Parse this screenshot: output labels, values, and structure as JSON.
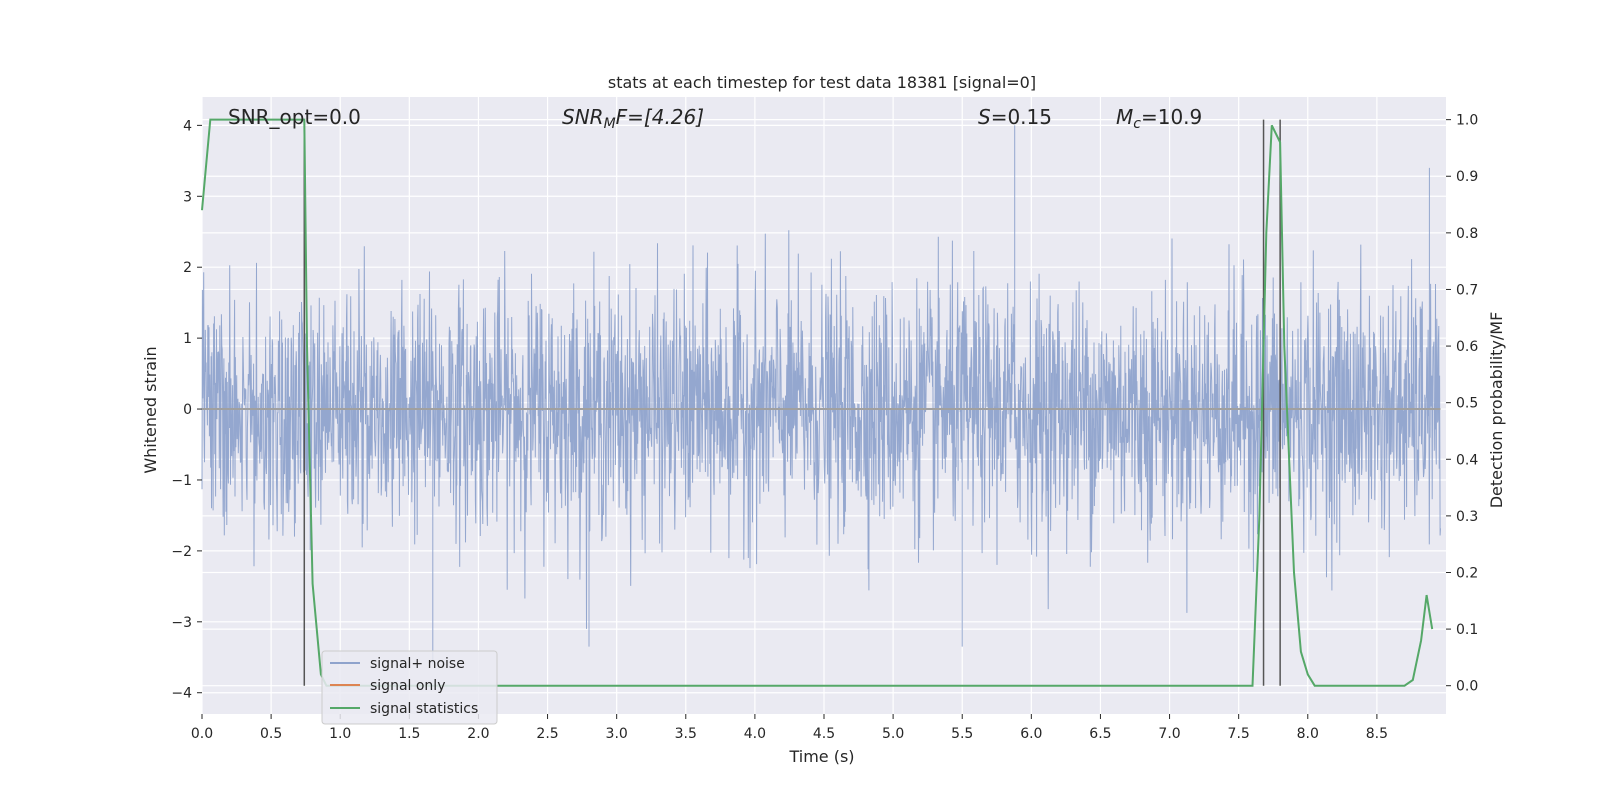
{
  "chart_data": {
    "type": "line",
    "title": "stats at each timestep for test data 18381 [signal=0]",
    "xlabel": "Time (s)",
    "ylabel": "Whitened strain",
    "y2label": "Detection probability/MF",
    "xlim": [
      0,
      9.0
    ],
    "ylim": [
      -4.3,
      4.4
    ],
    "y2lim": [
      -0.05,
      1.04
    ],
    "xticks": [
      "0.0",
      "0.5",
      "1.0",
      "1.5",
      "2.0",
      "2.5",
      "3.0",
      "3.5",
      "4.0",
      "4.5",
      "5.0",
      "5.5",
      "6.0",
      "6.5",
      "7.0",
      "7.5",
      "8.0",
      "8.5"
    ],
    "xtick_values": [
      0,
      0.5,
      1.0,
      1.5,
      2.0,
      2.5,
      3.0,
      3.5,
      4.0,
      4.5,
      5.0,
      5.5,
      6.0,
      6.5,
      7.0,
      7.5,
      8.0,
      8.5
    ],
    "yticks": [
      "4",
      "3",
      "2",
      "1",
      "0",
      "−1",
      "−2",
      "−3",
      "−4"
    ],
    "ytick_values": [
      4,
      3,
      2,
      1,
      0,
      -1,
      -2,
      -3,
      -4
    ],
    "y2ticks": [
      "1.0",
      "0.9",
      "0.8",
      "0.7",
      "0.6",
      "0.5",
      "0.4",
      "0.3",
      "0.2",
      "0.1",
      "0.0"
    ],
    "y2tick_values": [
      1.0,
      0.9,
      0.8,
      0.7,
      0.6,
      0.5,
      0.4,
      0.3,
      0.2,
      0.1,
      0.0
    ],
    "grid": true,
    "legend_position": "bottom-left",
    "annotations": {
      "snr_opt": "SNR_opt=0.0",
      "snr_mf_main": "SNR",
      "snr_mf_sub": "M",
      "snr_mf_rest": "F=[4.26]",
      "s_main": "S",
      "s_rest": "=0.15",
      "mc_main": "M",
      "mc_sub": "c",
      "mc_rest": "=10.9"
    },
    "vertical_lines_x": [
      0.74,
      7.68,
      7.8
    ],
    "series": [
      {
        "name": "signal+ noise",
        "color": "#8fa3cc",
        "noise_amplitude_sigma": 0.85,
        "peaks": [
          [
            5.88,
            4.0
          ],
          [
            8.88,
            3.4
          ],
          [
            1.67,
            -3.6
          ],
          [
            2.8,
            -3.35
          ],
          [
            5.5,
            -3.35
          ]
        ]
      },
      {
        "name": "signal only",
        "color": "#dd8452",
        "values_constant": 0.0
      },
      {
        "name": "signal statistics",
        "color": "#55a868",
        "axis": "right",
        "x": [
          0.0,
          0.06,
          0.1,
          0.15,
          0.5,
          0.72,
          0.74,
          0.76,
          0.8,
          0.86,
          0.9,
          1.5,
          3.0,
          5.0,
          6.0,
          7.0,
          7.6,
          7.65,
          7.7,
          7.74,
          7.8,
          7.83,
          7.9,
          7.95,
          8.0,
          8.05,
          8.1,
          8.3,
          8.7,
          8.76,
          8.82,
          8.86,
          8.9
        ],
        "values": [
          0.84,
          1.0,
          1.0,
          1.0,
          1.0,
          1.0,
          1.0,
          0.6,
          0.18,
          0.02,
          0.0,
          0.0,
          0.0,
          0.0,
          0.0,
          0.0,
          0.0,
          0.3,
          0.8,
          0.99,
          0.96,
          0.6,
          0.2,
          0.06,
          0.02,
          0.0,
          0.0,
          0.0,
          0.0,
          0.01,
          0.08,
          0.16,
          0.1
        ]
      }
    ]
  }
}
